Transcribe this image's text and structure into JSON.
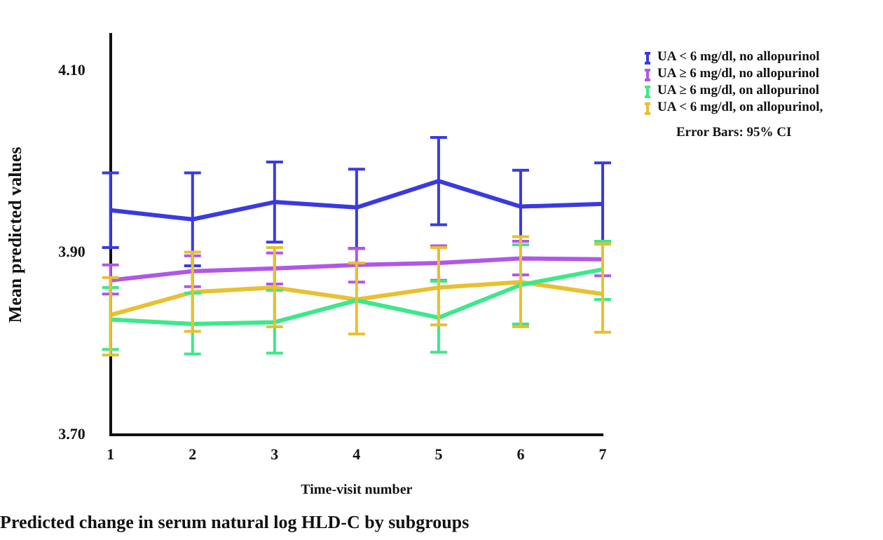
{
  "chart_data": {
    "type": "line",
    "title": "Predicted change in serum natural log HLD-C by subgroups",
    "xlabel": "Time-visit number",
    "ylabel": "Mean predicted values",
    "categories": [
      "1",
      "2",
      "3",
      "4",
      "5",
      "6",
      "7"
    ],
    "ylim": [
      3.7,
      4.14
    ],
    "yticks": [
      {
        "value": 3.7,
        "label": "3.70"
      },
      {
        "value": 3.9,
        "label": "3.90"
      },
      {
        "value": 4.1,
        "label": "4.10"
      }
    ],
    "grid": false,
    "legend": "top right",
    "marker": "none",
    "line_style": "solid",
    "annotations": [
      "Error Bars: 95% CI"
    ],
    "series": [
      {
        "name": "UA < 6 mg/dl, no allopurinol",
        "color": "#3a3ae0",
        "values": [
          3.947,
          3.937,
          3.956,
          3.95,
          3.979,
          3.951,
          3.954
        ],
        "errors": [
          [
            3.906,
            3.988
          ],
          [
            3.886,
            3.988
          ],
          [
            3.912,
            4.0
          ],
          [
            3.905,
            3.992
          ],
          [
            3.931,
            4.027
          ],
          [
            3.909,
            3.991
          ],
          [
            3.91,
            3.999
          ]
        ]
      },
      {
        "name": "UA ≥ 6 mg/dl, no allopurinol",
        "color": "#b057e8",
        "values": [
          3.87,
          3.88,
          3.883,
          3.887,
          3.889,
          3.894,
          3.893
        ],
        "errors": [
          [
            3.855,
            3.887
          ],
          [
            3.863,
            3.897
          ],
          [
            3.866,
            3.9
          ],
          [
            3.868,
            3.905
          ],
          [
            3.87,
            3.908
          ],
          [
            3.876,
            3.913
          ],
          [
            3.875,
            3.912
          ]
        ]
      },
      {
        "name": "UA ≥ 6 mg/dl, on allopurinol",
        "color": "#3de88a",
        "values": [
          3.827,
          3.822,
          3.824,
          3.848,
          3.829,
          3.865,
          3.882
        ],
        "errors": [
          [
            3.794,
            3.862
          ],
          [
            3.789,
            3.856
          ],
          [
            3.79,
            3.859
          ],
          null,
          [
            3.791,
            3.869
          ],
          [
            3.822,
            3.909
          ],
          [
            3.849,
            3.913
          ]
        ]
      },
      {
        "name": "UA < 6 mg/dl, on allopurinol,",
        "color": "#e8c030",
        "values": [
          3.832,
          3.857,
          3.862,
          3.849,
          3.862,
          3.868,
          3.855
        ],
        "errors": [
          [
            3.788,
            3.873
          ],
          [
            3.814,
            3.901
          ],
          [
            3.819,
            3.906
          ],
          [
            3.811,
            3.889
          ],
          [
            3.821,
            3.906
          ],
          [
            3.819,
            3.918
          ],
          [
            3.813,
            3.91
          ]
        ]
      }
    ]
  }
}
